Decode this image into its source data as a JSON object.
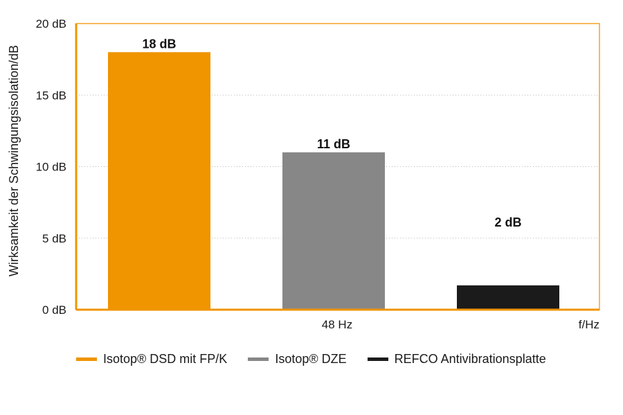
{
  "chart_data": {
    "type": "bar",
    "ylabel": "Wirksamkeit der Schwingungsisolation/dB",
    "xlabel": "f/Hz",
    "categories": [
      "48 Hz"
    ],
    "ylim": [
      0,
      20
    ],
    "yticks": [
      0,
      5,
      10,
      15,
      20
    ],
    "ytick_labels": [
      "0 dB",
      "5 dB",
      "10 dB",
      "15 dB",
      "20 dB"
    ],
    "grid": true,
    "legend_position": "bottom",
    "series": [
      {
        "name": "Isotop® DSD mit FP/K",
        "values": [
          18
        ],
        "label": "18 dB",
        "color": "#f09400"
      },
      {
        "name": "Isotop® DZE",
        "values": [
          11
        ],
        "label": "11 dB",
        "color": "#878787"
      },
      {
        "name": "REFCO Antivibrationsplatte",
        "values": [
          1.7
        ],
        "label": "2 dB",
        "color": "#1b1b1b"
      }
    ],
    "axis_color": "#f09400"
  }
}
